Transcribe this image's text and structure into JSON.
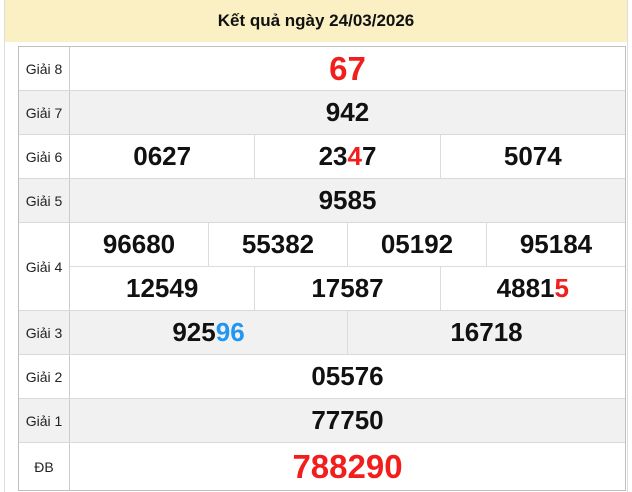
{
  "title": "Kết quả ngày 24/03/2026",
  "colors": {
    "red": "#f21e1e",
    "blue": "#2196f3",
    "header_bg": "#faf0c3",
    "stripe_bg": "#f1f1f1",
    "number_text": "#111111",
    "border": "#bfbfbf"
  },
  "table": {
    "rows": [
      {
        "label": "Giải 8",
        "big": true,
        "lines": [
          [
            [
              [
                "67",
                "red"
              ]
            ]
          ]
        ]
      },
      {
        "label": "Giải 7",
        "lines": [
          [
            [
              [
                "942"
              ]
            ]
          ]
        ]
      },
      {
        "label": "Giải 6",
        "lines": [
          [
            [
              [
                "0627"
              ]
            ],
            [
              [
                "23"
              ],
              [
                "4",
                "red"
              ],
              [
                "7"
              ]
            ],
            [
              [
                "5074"
              ]
            ]
          ]
        ]
      },
      {
        "label": "Giải 5",
        "lines": [
          [
            [
              [
                "9585"
              ]
            ]
          ]
        ]
      },
      {
        "label": "Giải 4",
        "lines": [
          [
            [
              [
                "96680"
              ]
            ],
            [
              [
                "55382"
              ]
            ],
            [
              [
                "05192"
              ]
            ],
            [
              [
                "95184"
              ]
            ]
          ],
          [
            [
              [
                "12549"
              ]
            ],
            [
              [
                "17587"
              ]
            ],
            [
              [
                "4881"
              ],
              [
                "5",
                "red"
              ]
            ]
          ]
        ]
      },
      {
        "label": "Giải 3",
        "lines": [
          [
            [
              [
                "925"
              ],
              [
                "96",
                "blue"
              ]
            ],
            [
              [
                "16718"
              ]
            ]
          ]
        ]
      },
      {
        "label": "Giải 2",
        "lines": [
          [
            [
              [
                "05576"
              ]
            ]
          ]
        ]
      },
      {
        "label": "Giải 1",
        "lines": [
          [
            [
              [
                "77750"
              ]
            ]
          ]
        ]
      },
      {
        "label": "ĐB",
        "big": true,
        "tall": true,
        "lines": [
          [
            [
              [
                "788290",
                "red"
              ]
            ]
          ]
        ]
      }
    ]
  }
}
